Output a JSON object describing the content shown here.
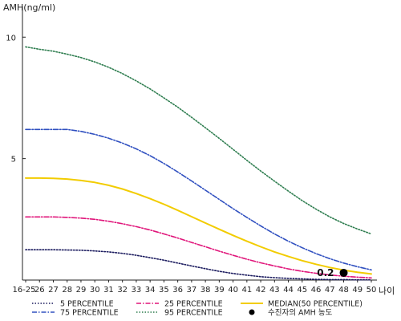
{
  "chart_data": {
    "type": "line",
    "ylabel": "AMH(ng/ml)",
    "xlabel": "나이",
    "categories": [
      "16-25",
      "26",
      "27",
      "28",
      "29",
      "30",
      "31",
      "32",
      "33",
      "34",
      "35",
      "36",
      "37",
      "38",
      "39",
      "40",
      "41",
      "42",
      "43",
      "44",
      "45",
      "46",
      "47",
      "48",
      "49",
      "50"
    ],
    "ylim": [
      0,
      11
    ],
    "yticks": [
      5,
      10
    ],
    "grid": false,
    "legend_position": "bottom",
    "series": [
      {
        "name": "5 PERCENTILE",
        "color": "#1a1a5e",
        "style": "dotted",
        "values": [
          1.25,
          1.25,
          1.25,
          1.24,
          1.23,
          1.2,
          1.16,
          1.1,
          1.02,
          0.92,
          0.82,
          0.7,
          0.58,
          0.47,
          0.36,
          0.27,
          0.2,
          0.14,
          0.1,
          0.07,
          0.05,
          0.03,
          0.02,
          0.02,
          0.01,
          0.01
        ]
      },
      {
        "name": "25 PERCENTILE",
        "color": "#e0157a",
        "style": "dashdot",
        "values": [
          2.6,
          2.6,
          2.6,
          2.58,
          2.55,
          2.5,
          2.42,
          2.32,
          2.2,
          2.06,
          1.9,
          1.73,
          1.55,
          1.37,
          1.19,
          1.02,
          0.86,
          0.71,
          0.58,
          0.46,
          0.36,
          0.28,
          0.21,
          0.16,
          0.12,
          0.09
        ]
      },
      {
        "name": "MEDIAN(50 PERCENTILE)",
        "color": "#f2cc00",
        "style": "solid",
        "values": [
          4.2,
          4.2,
          4.19,
          4.16,
          4.1,
          4.02,
          3.9,
          3.75,
          3.56,
          3.35,
          3.12,
          2.87,
          2.61,
          2.35,
          2.09,
          1.84,
          1.6,
          1.37,
          1.16,
          0.97,
          0.8,
          0.65,
          0.52,
          0.41,
          0.32,
          0.25
        ]
      },
      {
        "name": "75 PERCENTILE",
        "color": "#3050c0",
        "style": "dashdot",
        "values": [
          6.2,
          6.2,
          6.2,
          6.2,
          6.12,
          6.0,
          5.84,
          5.64,
          5.4,
          5.12,
          4.8,
          4.45,
          4.08,
          3.7,
          3.32,
          2.94,
          2.58,
          2.23,
          1.9,
          1.6,
          1.33,
          1.09,
          0.88,
          0.7,
          0.55,
          0.42
        ]
      },
      {
        "name": "95 PERCENTILE",
        "color": "#2e7d4f",
        "style": "dotted",
        "values": [
          9.6,
          9.5,
          9.42,
          9.3,
          9.16,
          8.98,
          8.76,
          8.5,
          8.2,
          7.87,
          7.5,
          7.12,
          6.7,
          6.27,
          5.83,
          5.38,
          4.93,
          4.49,
          4.07,
          3.66,
          3.27,
          2.92,
          2.6,
          2.33,
          2.1,
          1.9
        ]
      }
    ],
    "annotation": {
      "name": "수진자의 AMH 농도",
      "x": "48",
      "y": 0.2,
      "label": "0.2",
      "marker_color": "#000000"
    }
  }
}
